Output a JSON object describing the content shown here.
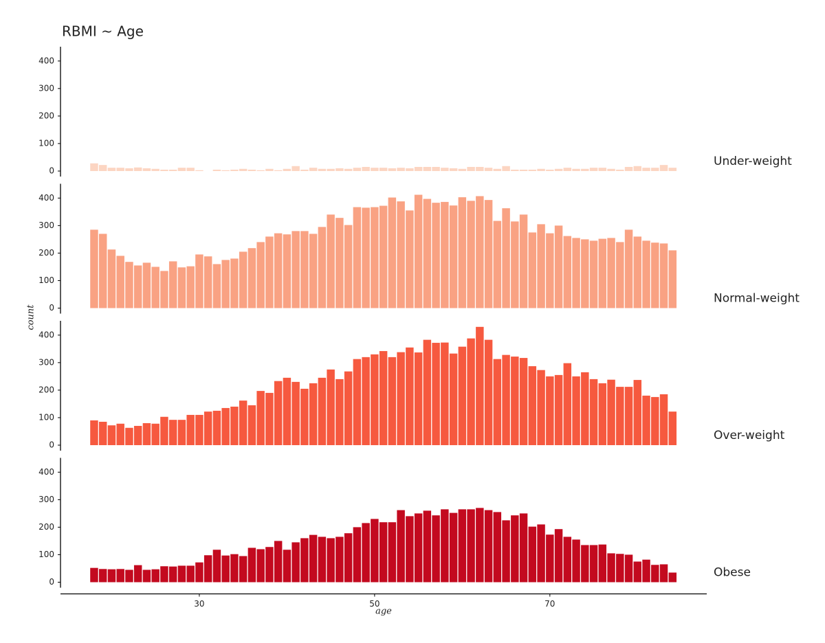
{
  "chart_data": {
    "type": "bar",
    "title": "RBMI ~ Age",
    "x_label": "age",
    "y_label": "count",
    "x": [
      18,
      19,
      20,
      21,
      22,
      23,
      24,
      25,
      26,
      27,
      28,
      29,
      30,
      31,
      32,
      33,
      34,
      35,
      36,
      37,
      38,
      39,
      40,
      41,
      42,
      43,
      44,
      45,
      46,
      47,
      48,
      49,
      50,
      51,
      52,
      53,
      54,
      55,
      56,
      57,
      58,
      59,
      60,
      61,
      62,
      63,
      64,
      65,
      66,
      67,
      68,
      69,
      70,
      71,
      72,
      73,
      74,
      75,
      76,
      77,
      78,
      79,
      80,
      81,
      82,
      83,
      84
    ],
    "xlim": [
      14.16,
      87.9
    ],
    "xticks": [
      30,
      50,
      70
    ],
    "ylim": [
      -20,
      452
    ],
    "yticks": [
      0,
      100,
      200,
      300,
      400
    ],
    "series": [
      {
        "name": "Under-weight",
        "color": "#fcd5c2",
        "values": [
          28,
          22,
          12,
          12,
          10,
          13,
          10,
          8,
          5,
          5,
          12,
          12,
          3,
          0,
          5,
          3,
          5,
          8,
          5,
          3,
          8,
          3,
          8,
          18,
          5,
          12,
          8,
          8,
          10,
          8,
          12,
          15,
          12,
          12,
          10,
          12,
          10,
          15,
          15,
          15,
          12,
          10,
          8,
          15,
          15,
          12,
          8,
          18,
          5,
          5,
          5,
          8,
          5,
          8,
          12,
          8,
          8,
          12,
          12,
          8,
          5,
          15,
          18,
          12,
          12,
          22,
          12
        ]
      },
      {
        "name": "Normal-weight",
        "color": "#f9a283",
        "values": [
          285,
          270,
          213,
          190,
          168,
          155,
          165,
          150,
          135,
          170,
          148,
          152,
          195,
          188,
          160,
          175,
          180,
          205,
          218,
          240,
          260,
          272,
          268,
          280,
          280,
          270,
          295,
          340,
          328,
          302,
          367,
          365,
          367,
          372,
          402,
          388,
          355,
          412,
          397,
          383,
          386,
          373,
          403,
          390,
          407,
          393,
          317,
          363,
          315,
          340,
          275,
          305,
          272,
          300,
          262,
          255,
          250,
          245,
          252,
          255,
          240,
          285,
          260,
          245,
          238,
          235,
          210
        ]
      },
      {
        "name": "Over-weight",
        "color": "#f6593f",
        "values": [
          90,
          85,
          72,
          78,
          63,
          70,
          80,
          78,
          103,
          92,
          92,
          110,
          110,
          122,
          125,
          135,
          140,
          162,
          145,
          197,
          190,
          233,
          245,
          230,
          205,
          225,
          245,
          275,
          240,
          268,
          313,
          320,
          330,
          342,
          320,
          338,
          355,
          337,
          383,
          372,
          373,
          333,
          358,
          388,
          430,
          383,
          313,
          328,
          322,
          317,
          287,
          273,
          250,
          255,
          298,
          250,
          265,
          240,
          225,
          238,
          212,
          212,
          237,
          180,
          175,
          185,
          122
        ]
      },
      {
        "name": "Obese",
        "color": "#c30a1f",
        "values": [
          52,
          48,
          47,
          48,
          45,
          62,
          45,
          47,
          58,
          57,
          60,
          60,
          72,
          98,
          118,
          97,
          102,
          95,
          125,
          120,
          128,
          150,
          118,
          145,
          160,
          172,
          165,
          160,
          165,
          178,
          200,
          215,
          230,
          218,
          218,
          262,
          240,
          250,
          260,
          243,
          265,
          252,
          265,
          265,
          270,
          262,
          255,
          225,
          243,
          250,
          202,
          210,
          173,
          193,
          165,
          155,
          135,
          135,
          137,
          105,
          103,
          100,
          75,
          82,
          63,
          65,
          35
        ]
      }
    ]
  }
}
